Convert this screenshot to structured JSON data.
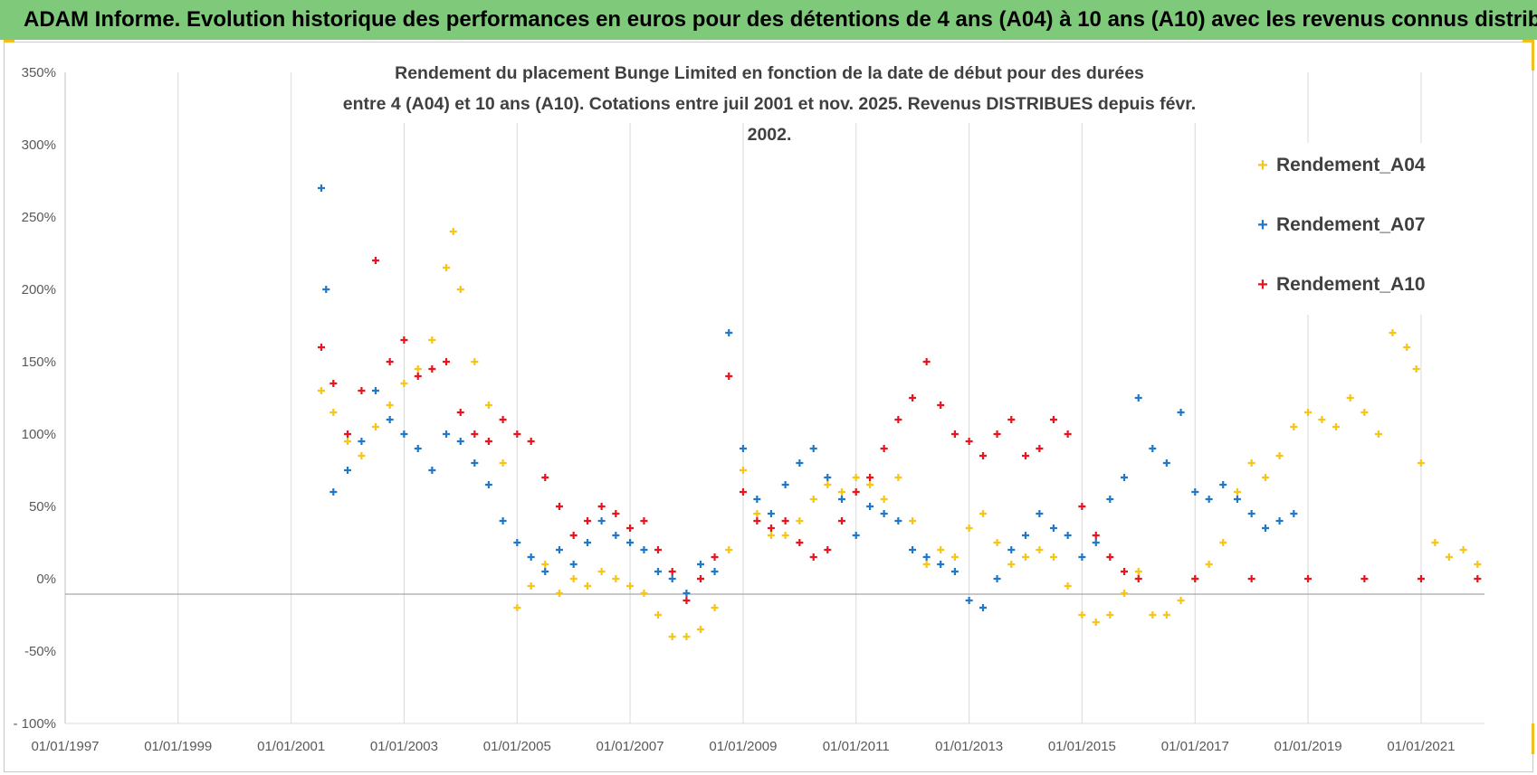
{
  "banner": {
    "title": "ADAM Informe. Evolution historique des performances en euros pour des détentions de 4 ans (A04) à 10 ans (A10) avec les revenus connus distribués"
  },
  "colors": {
    "banner_bg": "#7ec97a",
    "corner_accent": "#f0c020",
    "series_A04": "#f5c518",
    "series_A07": "#1f78c8",
    "series_A10": "#e8141e",
    "grid": "#d9d9d9",
    "zero_line": "#a6a6a6"
  },
  "chart_data": {
    "type": "scatter",
    "marker": "plus",
    "title_line1": "Rendement du placement Bunge Limited en fonction de la date de début pour des durées",
    "title_line2": "entre 4 (A04) et 10 ans (A10). Cotations entre juil 2001 et nov. 2025. Revenus DISTRIBUES depuis févr. 2002.",
    "xlabel": "",
    "ylabel": "",
    "x_range": [
      "1997-01-01",
      "2022-02-15"
    ],
    "x_ticks": [
      "01/01/1997",
      "01/01/1999",
      "01/01/2001",
      "01/01/2003",
      "01/01/2005",
      "01/01/2007",
      "01/01/2009",
      "01/01/2011",
      "01/01/2013",
      "01/01/2015",
      "01/01/2017",
      "01/01/2019",
      "01/01/2021"
    ],
    "y_range": [
      -100,
      350
    ],
    "y_ticks": [
      -100,
      -50,
      0,
      50,
      100,
      150,
      200,
      250,
      300,
      350
    ],
    "y_tick_labels": [
      "- 100%",
      "-50%",
      "0%",
      "50%",
      "100%",
      "150%",
      "200%",
      "250%",
      "300%",
      "350%"
    ],
    "grid": "vertical gridlines at x ticks, horizontal line at 0%",
    "legend_placement": "right",
    "series": [
      {
        "name": "Rendement_A04",
        "color": "#f5c518",
        "points": [
          [
            "2001-07-15",
            130
          ],
          [
            "2001-10-01",
            115
          ],
          [
            "2002-01-01",
            95
          ],
          [
            "2002-04-01",
            85
          ],
          [
            "2002-07-01",
            105
          ],
          [
            "2002-10-01",
            120
          ],
          [
            "2003-01-01",
            135
          ],
          [
            "2003-04-01",
            145
          ],
          [
            "2003-07-01",
            165
          ],
          [
            "2003-10-01",
            215
          ],
          [
            "2003-11-15",
            240
          ],
          [
            "2004-01-01",
            200
          ],
          [
            "2004-04-01",
            150
          ],
          [
            "2004-07-01",
            120
          ],
          [
            "2004-10-01",
            80
          ],
          [
            "2005-01-01",
            -20
          ],
          [
            "2005-04-01",
            -5
          ],
          [
            "2005-07-01",
            10
          ],
          [
            "2005-10-01",
            -10
          ],
          [
            "2006-01-01",
            0
          ],
          [
            "2006-04-01",
            -5
          ],
          [
            "2006-07-01",
            5
          ],
          [
            "2006-10-01",
            0
          ],
          [
            "2007-01-01",
            -5
          ],
          [
            "2007-04-01",
            -10
          ],
          [
            "2007-07-01",
            -25
          ],
          [
            "2007-10-01",
            -40
          ],
          [
            "2008-01-01",
            -40
          ],
          [
            "2008-04-01",
            -35
          ],
          [
            "2008-07-01",
            -20
          ],
          [
            "2008-10-01",
            20
          ],
          [
            "2009-01-01",
            75
          ],
          [
            "2009-04-01",
            45
          ],
          [
            "2009-07-01",
            30
          ],
          [
            "2009-10-01",
            30
          ],
          [
            "2010-01-01",
            40
          ],
          [
            "2010-04-01",
            55
          ],
          [
            "2010-07-01",
            65
          ],
          [
            "2010-10-01",
            60
          ],
          [
            "2011-01-01",
            70
          ],
          [
            "2011-04-01",
            65
          ],
          [
            "2011-07-01",
            55
          ],
          [
            "2011-10-01",
            70
          ],
          [
            "2012-01-01",
            40
          ],
          [
            "2012-04-01",
            10
          ],
          [
            "2012-07-01",
            20
          ],
          [
            "2012-10-01",
            15
          ],
          [
            "2013-01-01",
            35
          ],
          [
            "2013-04-01",
            45
          ],
          [
            "2013-07-01",
            25
          ],
          [
            "2013-10-01",
            10
          ],
          [
            "2014-01-01",
            15
          ],
          [
            "2014-04-01",
            20
          ],
          [
            "2014-07-01",
            15
          ],
          [
            "2014-10-01",
            -5
          ],
          [
            "2015-01-01",
            -25
          ],
          [
            "2015-04-01",
            -30
          ],
          [
            "2015-07-01",
            -25
          ],
          [
            "2015-10-01",
            -10
          ],
          [
            "2016-01-01",
            5
          ],
          [
            "2016-04-01",
            -25
          ],
          [
            "2016-07-01",
            -25
          ],
          [
            "2016-10-01",
            -15
          ],
          [
            "2017-01-01",
            0
          ],
          [
            "2017-04-01",
            10
          ],
          [
            "2017-07-01",
            25
          ],
          [
            "2017-10-01",
            60
          ],
          [
            "2018-01-01",
            80
          ],
          [
            "2018-04-01",
            70
          ],
          [
            "2018-07-01",
            85
          ],
          [
            "2018-10-01",
            105
          ],
          [
            "2019-01-01",
            115
          ],
          [
            "2019-04-01",
            110
          ],
          [
            "2019-07-01",
            105
          ],
          [
            "2019-10-01",
            125
          ],
          [
            "2020-01-01",
            115
          ],
          [
            "2020-04-01",
            100
          ],
          [
            "2020-07-01",
            170
          ],
          [
            "2020-10-01",
            160
          ],
          [
            "2020-12-01",
            145
          ],
          [
            "2021-01-01",
            80
          ],
          [
            "2021-04-01",
            25
          ],
          [
            "2021-07-01",
            15
          ],
          [
            "2021-10-01",
            20
          ],
          [
            "2022-01-01",
            10
          ]
        ]
      },
      {
        "name": "Rendement_A07",
        "color": "#1f78c8",
        "points": [
          [
            "2001-07-15",
            270
          ],
          [
            "2001-08-15",
            200
          ],
          [
            "2001-10-01",
            60
          ],
          [
            "2002-01-01",
            75
          ],
          [
            "2002-04-01",
            95
          ],
          [
            "2002-07-01",
            130
          ],
          [
            "2002-10-01",
            110
          ],
          [
            "2003-01-01",
            100
          ],
          [
            "2003-04-01",
            90
          ],
          [
            "2003-07-01",
            75
          ],
          [
            "2003-10-01",
            100
          ],
          [
            "2004-01-01",
            95
          ],
          [
            "2004-04-01",
            80
          ],
          [
            "2004-07-01",
            65
          ],
          [
            "2004-10-01",
            40
          ],
          [
            "2005-01-01",
            25
          ],
          [
            "2005-04-01",
            15
          ],
          [
            "2005-07-01",
            5
          ],
          [
            "2005-10-01",
            20
          ],
          [
            "2006-01-01",
            10
          ],
          [
            "2006-04-01",
            25
          ],
          [
            "2006-07-01",
            40
          ],
          [
            "2006-10-01",
            30
          ],
          [
            "2007-01-01",
            25
          ],
          [
            "2007-04-01",
            20
          ],
          [
            "2007-07-01",
            5
          ],
          [
            "2007-10-01",
            0
          ],
          [
            "2008-01-01",
            -10
          ],
          [
            "2008-04-01",
            10
          ],
          [
            "2008-07-01",
            5
          ],
          [
            "2008-10-01",
            170
          ],
          [
            "2009-01-01",
            90
          ],
          [
            "2009-04-01",
            55
          ],
          [
            "2009-07-01",
            45
          ],
          [
            "2009-10-01",
            65
          ],
          [
            "2010-01-01",
            80
          ],
          [
            "2010-04-01",
            90
          ],
          [
            "2010-07-01",
            70
          ],
          [
            "2010-10-01",
            55
          ],
          [
            "2011-01-01",
            30
          ],
          [
            "2011-04-01",
            50
          ],
          [
            "2011-07-01",
            45
          ],
          [
            "2011-10-01",
            40
          ],
          [
            "2012-01-01",
            20
          ],
          [
            "2012-04-01",
            15
          ],
          [
            "2012-07-01",
            10
          ],
          [
            "2012-10-01",
            5
          ],
          [
            "2013-01-01",
            -15
          ],
          [
            "2013-04-01",
            -20
          ],
          [
            "2013-07-01",
            0
          ],
          [
            "2013-10-01",
            20
          ],
          [
            "2014-01-01",
            30
          ],
          [
            "2014-04-01",
            45
          ],
          [
            "2014-07-01",
            35
          ],
          [
            "2014-10-01",
            30
          ],
          [
            "2015-01-01",
            15
          ],
          [
            "2015-04-01",
            25
          ],
          [
            "2015-07-01",
            55
          ],
          [
            "2015-10-01",
            70
          ],
          [
            "2016-01-01",
            125
          ],
          [
            "2016-04-01",
            90
          ],
          [
            "2016-07-01",
            80
          ],
          [
            "2016-10-01",
            115
          ],
          [
            "2017-01-01",
            60
          ],
          [
            "2017-04-01",
            55
          ],
          [
            "2017-07-01",
            65
          ],
          [
            "2017-10-01",
            55
          ],
          [
            "2018-01-01",
            45
          ],
          [
            "2018-04-01",
            35
          ],
          [
            "2018-07-01",
            40
          ],
          [
            "2018-10-01",
            45
          ]
        ]
      },
      {
        "name": "Rendement_A10",
        "color": "#e8141e",
        "points": [
          [
            "2001-07-15",
            160
          ],
          [
            "2001-10-01",
            135
          ],
          [
            "2002-01-01",
            100
          ],
          [
            "2002-04-01",
            130
          ],
          [
            "2002-07-01",
            220
          ],
          [
            "2002-10-01",
            150
          ],
          [
            "2003-01-01",
            165
          ],
          [
            "2003-04-01",
            140
          ],
          [
            "2003-07-01",
            145
          ],
          [
            "2003-10-01",
            150
          ],
          [
            "2004-01-01",
            115
          ],
          [
            "2004-04-01",
            100
          ],
          [
            "2004-07-01",
            95
          ],
          [
            "2004-10-01",
            110
          ],
          [
            "2005-01-01",
            100
          ],
          [
            "2005-04-01",
            95
          ],
          [
            "2005-07-01",
            70
          ],
          [
            "2005-10-01",
            50
          ],
          [
            "2006-01-01",
            30
          ],
          [
            "2006-04-01",
            40
          ],
          [
            "2006-07-01",
            50
          ],
          [
            "2006-10-01",
            45
          ],
          [
            "2007-01-01",
            35
          ],
          [
            "2007-04-01",
            40
          ],
          [
            "2007-07-01",
            20
          ],
          [
            "2007-10-01",
            5
          ],
          [
            "2008-01-01",
            -15
          ],
          [
            "2008-04-01",
            0
          ],
          [
            "2008-07-01",
            15
          ],
          [
            "2008-10-01",
            140
          ],
          [
            "2009-01-01",
            60
          ],
          [
            "2009-04-01",
            40
          ],
          [
            "2009-07-01",
            35
          ],
          [
            "2009-10-01",
            40
          ],
          [
            "2010-01-01",
            25
          ],
          [
            "2010-04-01",
            15
          ],
          [
            "2010-07-01",
            20
          ],
          [
            "2010-10-01",
            40
          ],
          [
            "2011-01-01",
            60
          ],
          [
            "2011-04-01",
            70
          ],
          [
            "2011-07-01",
            90
          ],
          [
            "2011-10-01",
            110
          ],
          [
            "2012-01-01",
            125
          ],
          [
            "2012-04-01",
            150
          ],
          [
            "2012-07-01",
            120
          ],
          [
            "2012-10-01",
            100
          ],
          [
            "2013-01-01",
            95
          ],
          [
            "2013-04-01",
            85
          ],
          [
            "2013-07-01",
            100
          ],
          [
            "2013-10-01",
            110
          ],
          [
            "2014-01-01",
            85
          ],
          [
            "2014-04-01",
            90
          ],
          [
            "2014-07-01",
            110
          ],
          [
            "2014-10-01",
            100
          ],
          [
            "2015-01-01",
            50
          ],
          [
            "2015-04-01",
            30
          ],
          [
            "2015-07-01",
            15
          ],
          [
            "2015-10-01",
            5
          ],
          [
            "2016-01-01",
            0
          ],
          [
            "2017-01-01",
            0
          ],
          [
            "2018-01-01",
            0
          ],
          [
            "2019-01-01",
            0
          ],
          [
            "2020-01-01",
            0
          ],
          [
            "2021-01-01",
            0
          ],
          [
            "2022-01-01",
            0
          ]
        ]
      }
    ]
  }
}
